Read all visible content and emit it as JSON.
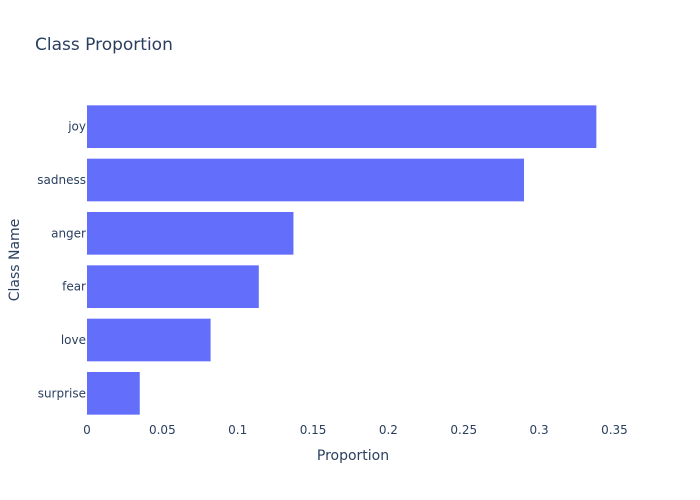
{
  "chart_data": {
    "type": "bar",
    "orientation": "horizontal",
    "title": "Class Proportion",
    "xlabel": "Proportion",
    "ylabel": "Class Name",
    "categories": [
      "joy",
      "sadness",
      "anger",
      "fear",
      "love",
      "surprise"
    ],
    "values": [
      0.338,
      0.29,
      0.137,
      0.114,
      0.082,
      0.035
    ],
    "xlim": [
      0,
      0.3935
    ],
    "xticks": [
      0,
      0.05,
      0.1,
      0.15,
      0.2,
      0.25,
      0.3,
      0.35
    ],
    "xtick_labels": [
      "0",
      "0.05",
      "0.1",
      "0.15",
      "0.2",
      "0.25",
      "0.3",
      "0.35"
    ],
    "grid": false,
    "bar_color": "#636efa"
  }
}
